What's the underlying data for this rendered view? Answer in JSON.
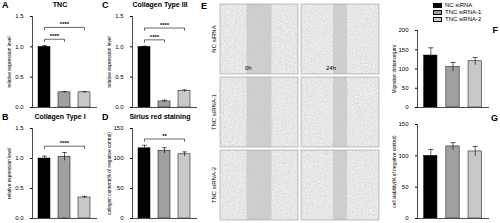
{
  "chart_data": [
    {
      "panel": "A",
      "type": "bar",
      "title": "TNC",
      "y_label": "relative expression level",
      "categories": [
        "NC siRNA",
        "TNC siRNA-1",
        "TNC siRNA-2"
      ],
      "values": [
        1.0,
        0.25,
        0.25
      ],
      "errors": [
        0.02,
        0.01,
        0.01
      ],
      "colors": [
        "#000000",
        "#a0a0a0",
        "#c8c8c8"
      ],
      "ylim": [
        0,
        1.5
      ],
      "yticks": [
        {
          "value": 0,
          "label": "0.0"
        },
        {
          "value": 0.5,
          "label": "0.5"
        },
        {
          "value": 1,
          "label": "1.0"
        },
        {
          "value": 1.5,
          "label": "1.5"
        }
      ],
      "tick_labels": "y",
      "annotations": [
        {
          "text": "****",
          "between": [
            "NC siRNA",
            "TNC siRNA-1"
          ]
        },
        {
          "text": "****",
          "between": [
            "NC siRNA",
            "TNC siRNA-2"
          ]
        }
      ]
    },
    {
      "panel": "B",
      "type": "bar",
      "title": "Collagen Type I",
      "y_label": "relative expression level",
      "categories": [
        "NC siRNA",
        "TNC siRNA-1",
        "TNC siRNA-2"
      ],
      "values": [
        1.0,
        1.03,
        0.35
      ],
      "errors": [
        0.04,
        0.07,
        0.02
      ],
      "colors": [
        "#000000",
        "#a0a0a0",
        "#c8c8c8"
      ],
      "ylim": [
        0,
        1.5
      ],
      "yticks": [
        {
          "value": 0,
          "label": "0.0"
        },
        {
          "value": 0.5,
          "label": "0.5"
        },
        {
          "value": 1,
          "label": "1.0"
        },
        {
          "value": 1.5,
          "label": "1.5"
        }
      ],
      "tick_labels": "y",
      "annotations": [
        {
          "text": "****",
          "between": [
            "NC siRNA",
            "TNC siRNA-2"
          ]
        }
      ]
    },
    {
      "panel": "C",
      "type": "bar",
      "title": "Collagen Type III",
      "y_label": "relative expression level",
      "categories": [
        "NC siRNA",
        "TNC siRNA-1",
        "TNC siRNA-2"
      ],
      "values": [
        1.0,
        0.1,
        0.27
      ],
      "errors": [
        0.01,
        0.02,
        0.02
      ],
      "colors": [
        "#000000",
        "#a0a0a0",
        "#c8c8c8"
      ],
      "ylim": [
        0,
        1.5
      ],
      "yticks": [
        {
          "value": 0,
          "label": "0.0"
        },
        {
          "value": 0.5,
          "label": "0.5"
        },
        {
          "value": 1,
          "label": "1.0"
        },
        {
          "value": 1.5,
          "label": "1.5"
        }
      ],
      "tick_labels": "y",
      "annotations": [
        {
          "text": "****",
          "between": [
            "NC siRNA",
            "TNC siRNA-1"
          ]
        },
        {
          "text": "****",
          "between": [
            "NC siRNA",
            "TNC siRNA-2"
          ]
        }
      ]
    },
    {
      "panel": "D",
      "type": "bar",
      "title": "Sirius red staining",
      "y_label": "collagen content(% of negative control)",
      "categories": [
        "NC siRNA",
        "TNC siRNA-1",
        "TNC siRNA-2"
      ],
      "values": [
        117,
        113,
        107
      ],
      "errors": [
        5,
        5,
        4
      ],
      "colors": [
        "#000000",
        "#a0a0a0",
        "#c8c8c8"
      ],
      "ylim": [
        0,
        150
      ],
      "yticks": [
        0,
        50,
        100,
        150
      ],
      "tick_labels": "y",
      "annotations": [
        {
          "text": "**",
          "between": [
            "NC siRNA",
            "TNC siRNA-2"
          ]
        }
      ]
    },
    {
      "panel": "F",
      "type": "bar",
      "y_label": "Migration distance(μm)",
      "categories": [
        "NC siRNA",
        "TNC siRNA-1",
        "TNC siRNA-2"
      ],
      "values": [
        135,
        105,
        120
      ],
      "errors": [
        20,
        12,
        10
      ],
      "colors": [
        "#000000",
        "#a0a0a0",
        "#c8c8c8"
      ],
      "ylim": [
        0,
        200
      ],
      "yticks": [
        0,
        50,
        100,
        150,
        200
      ],
      "tick_labels": "y",
      "legend": "top-right"
    },
    {
      "panel": "G",
      "type": "bar",
      "y_label": "cell viability(% of negative control)",
      "categories": [
        "NC siRNA",
        "TNC siRNA-1",
        "TNC siRNA-2"
      ],
      "values": [
        100,
        115,
        107
      ],
      "errors": [
        10,
        6,
        8
      ],
      "colors": [
        "#000000",
        "#a0a0a0",
        "#c8c8c8"
      ],
      "ylim": [
        0,
        150
      ],
      "yticks": [
        0,
        50,
        100,
        150
      ],
      "tick_labels": "y"
    }
  ],
  "image_panel": {
    "panel": "E",
    "columns": [
      "0h",
      "24h"
    ],
    "rows": [
      "NC siRNA",
      "TNC siRNA-1",
      "TNC siRNA-2"
    ]
  }
}
